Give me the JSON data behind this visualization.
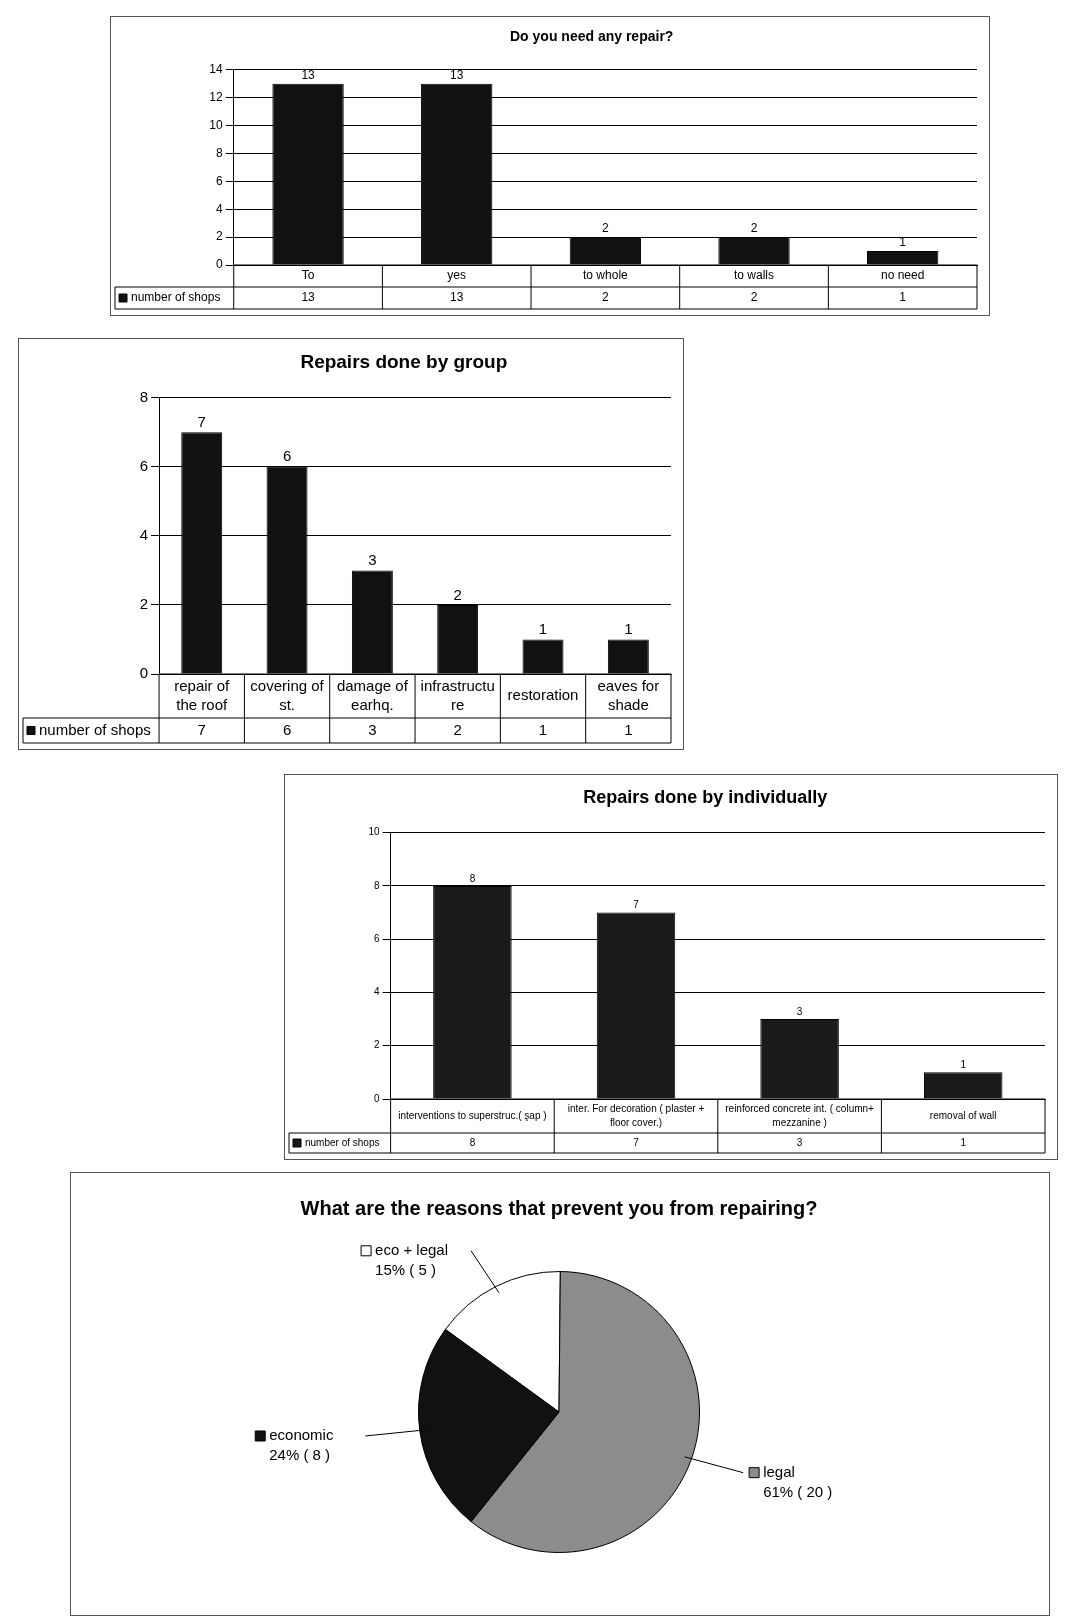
{
  "chart_data": [
    {
      "type": "bar",
      "title": "Do you need any repair?",
      "categories": [
        "To",
        "yes",
        "to whole",
        "to walls",
        "no need"
      ],
      "series": [
        {
          "name": "number of shops",
          "color": "#111111",
          "values": [
            13,
            13,
            2,
            2,
            1
          ]
        }
      ],
      "data_labels": true,
      "ylim": [
        0,
        14
      ],
      "yticks": [
        0,
        2,
        4,
        6,
        8,
        10,
        12,
        14
      ],
      "grid": "y",
      "annotations": [
        "13",
        "13",
        "2",
        "2",
        "1"
      ]
    },
    {
      "type": "bar",
      "title": "Repairs done by group",
      "categories": [
        "repair of the roof",
        "covering of st.",
        "damage of earhq.",
        "infrastructure",
        "restoration",
        "eaves for shade"
      ],
      "series": [
        {
          "name": "number of shops",
          "color": "#111111",
          "values": [
            7,
            6,
            3,
            2,
            1,
            1
          ]
        }
      ],
      "data_labels": true,
      "ylim": [
        0,
        8
      ],
      "yticks": [
        0,
        2,
        4,
        6,
        8
      ],
      "grid": "y",
      "annotations": [
        "7",
        "6",
        "3",
        "2",
        "1",
        "1"
      ]
    },
    {
      "type": "bar",
      "title": "Repairs done by individually",
      "categories": [
        "interventions to superstruc.( şap )",
        "inter. For decoration ( plaster + floor cover.)",
        "reinforced concrete int. ( column+ mezzanine )",
        "removal of wall"
      ],
      "series": [
        {
          "name": "number of shops",
          "color": "#1a1a1a",
          "values": [
            8,
            7,
            3,
            1
          ]
        }
      ],
      "data_labels": true,
      "ylim": [
        0,
        10
      ],
      "yticks": [
        0,
        2,
        4,
        6,
        8,
        10
      ],
      "grid": "y",
      "annotations": [
        "8",
        "7",
        "3",
        "1"
      ]
    },
    {
      "type": "pie",
      "title": "What are the reasons that prevent you from repairing?",
      "categories": [
        "eco + legal",
        "legal",
        "economic"
      ],
      "values": [
        5,
        20,
        8
      ],
      "colors": [
        "#ffffff",
        "#8c8c8c",
        "#111111"
      ],
      "value_labels": [
        "15% ( 5 )",
        "61% ( 20 )",
        "24% ( 8 )"
      ],
      "legend": "left"
    }
  ]
}
